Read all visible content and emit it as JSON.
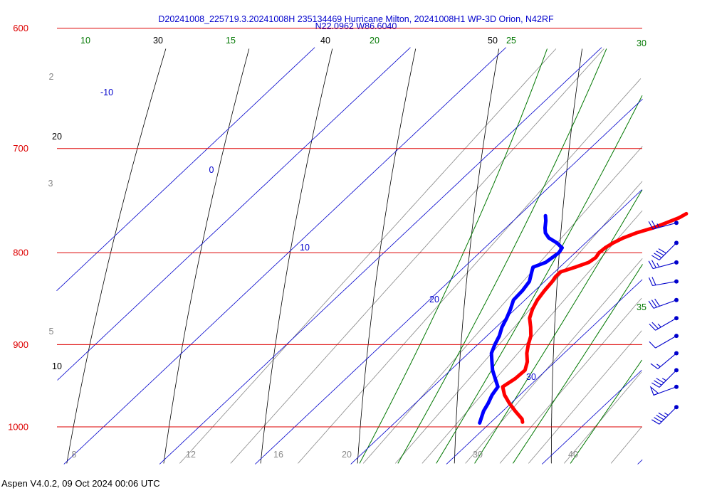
{
  "header": {
    "line1": "D20241008_225719.3.20241008H 235134469 Hurricane Milton, 20241008H1 WP-3D Orion, N42RF",
    "line2": "N22.0962 W86.6040"
  },
  "footer": {
    "text": "Aspen V4.0.2, 09 Oct 2024  00:06 UTC"
  },
  "colors": {
    "isobar": "#dd0000",
    "isotherm": "#0000cc",
    "dry_adiabat": "#000000",
    "moist_adiabat": "#007700",
    "mixing_ratio": "#888888",
    "temperature_trace": "#ff0000",
    "dewpoint_trace": "#0000ff",
    "wind_barbs": "#0000cc"
  },
  "chart_data": {
    "type": "skew-t log-p",
    "pressure_axis": {
      "label_values": [
        "600",
        "700",
        "800",
        "900",
        "1000"
      ]
    },
    "isotherm_labels": [
      "-10",
      "0",
      "10",
      "20",
      "30"
    ],
    "dry_adiabat_labels": {
      "top": [
        "30",
        "40",
        "50"
      ],
      "left": [
        "20",
        "10"
      ]
    },
    "moist_adiabat_labels": {
      "top": [
        "10",
        "15",
        "20",
        "25",
        "30"
      ],
      "right": [
        "35"
      ]
    },
    "mixing_ratio_labels": {
      "bottom": [
        "8",
        "12",
        "16",
        "20",
        "30",
        "40"
      ],
      "left": [
        "2",
        "3",
        "5"
      ]
    },
    "temperature_profile": [
      {
        "p": 761,
        "t": 17.3
      },
      {
        "p": 765,
        "t": 17.0
      },
      {
        "p": 770,
        "t": 16.2
      },
      {
        "p": 775,
        "t": 15.4
      },
      {
        "p": 780,
        "t": 14.2
      },
      {
        "p": 785,
        "t": 13.4
      },
      {
        "p": 790,
        "t": 12.9
      },
      {
        "p": 795,
        "t": 12.6
      },
      {
        "p": 800,
        "t": 12.5
      },
      {
        "p": 805,
        "t": 12.7
      },
      {
        "p": 810,
        "t": 12.5
      },
      {
        "p": 815,
        "t": 11.6
      },
      {
        "p": 820,
        "t": 10.6
      },
      {
        "p": 825,
        "t": 10.6
      },
      {
        "p": 830,
        "t": 10.8
      },
      {
        "p": 840,
        "t": 11.0
      },
      {
        "p": 850,
        "t": 11.3
      },
      {
        "p": 860,
        "t": 11.8
      },
      {
        "p": 870,
        "t": 12.5
      },
      {
        "p": 880,
        "t": 13.6
      },
      {
        "p": 890,
        "t": 14.6
      },
      {
        "p": 900,
        "t": 15.3
      },
      {
        "p": 910,
        "t": 16.1
      },
      {
        "p": 920,
        "t": 17.1
      },
      {
        "p": 930,
        "t": 17.8
      },
      {
        "p": 940,
        "t": 17.7
      },
      {
        "p": 950,
        "t": 17.3
      },
      {
        "p": 960,
        "t": 18.4
      },
      {
        "p": 970,
        "t": 19.8
      },
      {
        "p": 980,
        "t": 21.3
      },
      {
        "p": 990,
        "t": 22.9
      },
      {
        "p": 994,
        "t": 23.3
      }
    ],
    "dewpoint_profile": [
      {
        "p": 763,
        "td": 2.8
      },
      {
        "p": 768,
        "td": 3.4
      },
      {
        "p": 775,
        "td": 4.1
      },
      {
        "p": 780,
        "td": 4.7
      },
      {
        "p": 785,
        "td": 5.6
      },
      {
        "p": 790,
        "td": 7.0
      },
      {
        "p": 795,
        "td": 8.1
      },
      {
        "p": 800,
        "td": 8.3
      },
      {
        "p": 810,
        "td": 8.0
      },
      {
        "p": 815,
        "td": 7.2
      },
      {
        "p": 820,
        "td": 7.6
      },
      {
        "p": 830,
        "td": 8.4
      },
      {
        "p": 840,
        "td": 8.7
      },
      {
        "p": 850,
        "td": 8.8
      },
      {
        "p": 860,
        "td": 9.5
      },
      {
        "p": 870,
        "td": 10.1
      },
      {
        "p": 880,
        "td": 10.6
      },
      {
        "p": 890,
        "td": 11.3
      },
      {
        "p": 900,
        "td": 11.8
      },
      {
        "p": 910,
        "td": 12.4
      },
      {
        "p": 920,
        "td": 13.4
      },
      {
        "p": 930,
        "td": 14.4
      },
      {
        "p": 940,
        "td": 15.6
      },
      {
        "p": 950,
        "td": 16.8
      },
      {
        "p": 960,
        "td": 17.1
      },
      {
        "p": 970,
        "td": 17.6
      },
      {
        "p": 980,
        "td": 18.0
      },
      {
        "p": 990,
        "td": 18.6
      },
      {
        "p": 995,
        "td": 18.9
      }
    ],
    "wind_barbs": [
      {
        "p": 770,
        "dir": 75,
        "spd": 25
      },
      {
        "p": 790,
        "dir": 45,
        "spd": 40
      },
      {
        "p": 810,
        "dir": 75,
        "spd": 25
      },
      {
        "p": 830,
        "dir": 80,
        "spd": 20
      },
      {
        "p": 850,
        "dir": 70,
        "spd": 30
      },
      {
        "p": 870,
        "dir": 60,
        "spd": 25
      },
      {
        "p": 890,
        "dir": 60,
        "spd": 10
      },
      {
        "p": 910,
        "dir": 50,
        "spd": 15
      },
      {
        "p": 930,
        "dir": 45,
        "spd": 35
      },
      {
        "p": 950,
        "dir": 70,
        "spd": 50
      },
      {
        "p": 975,
        "dir": 45,
        "spd": 45
      }
    ]
  }
}
